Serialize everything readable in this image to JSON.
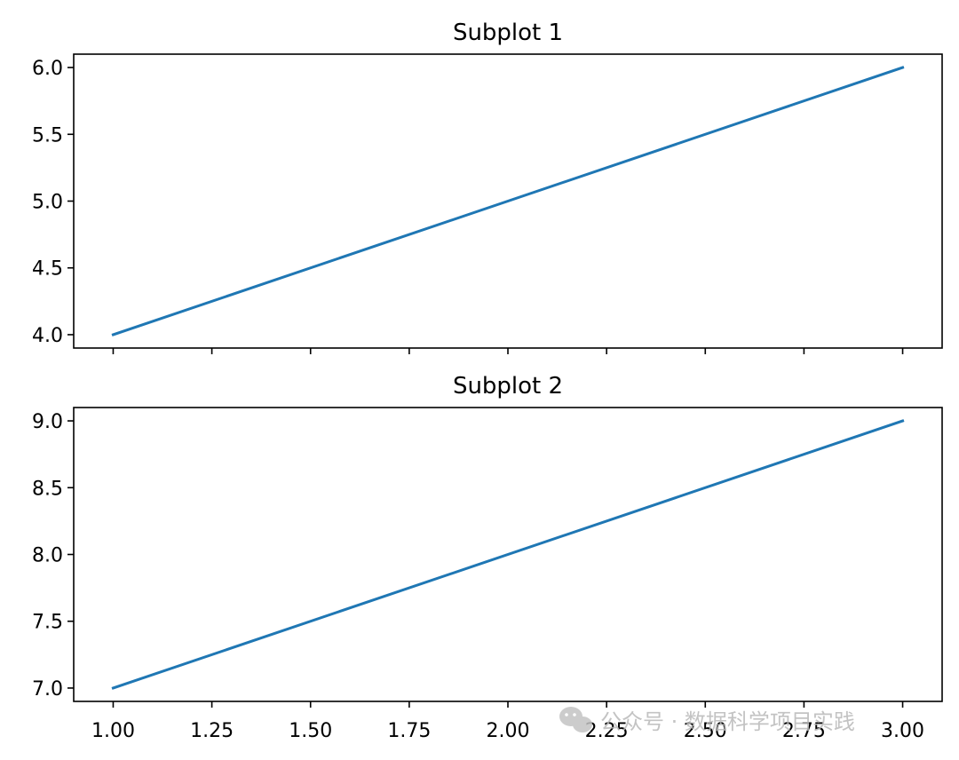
{
  "chart_data": [
    {
      "type": "line",
      "title": "Subplot 1",
      "x": [
        1.0,
        3.0
      ],
      "series": [
        {
          "values": [
            4.0,
            6.0
          ],
          "color": "#1f77b4"
        }
      ],
      "xlim": [
        0.9,
        3.1
      ],
      "ylim": [
        3.9,
        6.1
      ],
      "yticks": [
        "4.0",
        "4.5",
        "5.0",
        "5.5",
        "6.0"
      ],
      "xticks": [],
      "grid": false
    },
    {
      "type": "line",
      "title": "Subplot 2",
      "x": [
        1.0,
        3.0
      ],
      "series": [
        {
          "values": [
            7.0,
            9.0
          ],
          "color": "#1f77b4"
        }
      ],
      "xlim": [
        0.9,
        3.1
      ],
      "ylim": [
        6.9,
        9.1
      ],
      "yticks": [
        "7.0",
        "7.5",
        "8.0",
        "8.5",
        "9.0"
      ],
      "xticks": [
        "1.00",
        "1.25",
        "1.50",
        "1.75",
        "2.00",
        "2.25",
        "2.50",
        "2.75",
        "3.00"
      ],
      "grid": false
    }
  ],
  "shared_x_ticks": [
    1.0,
    1.25,
    1.5,
    1.75,
    2.0,
    2.25,
    2.5,
    2.75,
    3.0
  ],
  "watermark": {
    "text": "公众号 · 数据科学项目实践",
    "icon": "wechat-icon"
  }
}
